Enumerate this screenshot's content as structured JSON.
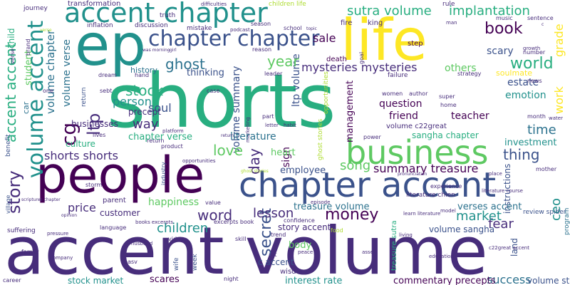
{
  "palette": {
    "background": "#ffffff",
    "dark_purple": "#440154",
    "indigo": "#472d7b",
    "blue": "#3b528b",
    "steel_blue": "#2c728e",
    "teal": "#21918c",
    "green_teal": "#28ae80",
    "green": "#5ec962",
    "lime": "#addc30",
    "yellow": "#fde725"
  },
  "words": [
    {
      "text": "shorts"
    },
    {
      "text": "accent volume"
    },
    {
      "text": "life"
    },
    {
      "text": "ep"
    },
    {
      "text": "people"
    },
    {
      "text": "accent chapter"
    },
    {
      "text": "chapter accent"
    },
    {
      "text": "business"
    },
    {
      "text": "chapter chapter"
    },
    {
      "text": "volume accent"
    },
    {
      "text": "accent accent"
    },
    {
      "text": "sutra volume"
    },
    {
      "text": "implantation"
    },
    {
      "text": "book"
    },
    {
      "text": "world"
    },
    {
      "text": "story"
    },
    {
      "text": "work"
    },
    {
      "text": "grade"
    },
    {
      "text": "ghost"
    },
    {
      "text": "year"
    },
    {
      "text": "mysteries mysteries"
    },
    {
      "text": "others"
    },
    {
      "text": "scary"
    },
    {
      "text": "estate"
    },
    {
      "text": "stock"
    },
    {
      "text": "soul"
    },
    {
      "text": "person"
    },
    {
      "text": "ltp"
    },
    {
      "text": "way"
    },
    {
      "text": "love"
    },
    {
      "text": "thing"
    },
    {
      "text": "time"
    },
    {
      "text": "emotion"
    },
    {
      "text": "investment"
    },
    {
      "text": "sign"
    },
    {
      "text": "day"
    },
    {
      "text": "summary treasure"
    },
    {
      "text": "song"
    },
    {
      "text": "money"
    },
    {
      "text": "fear"
    },
    {
      "text": "market"
    },
    {
      "text": "lesson"
    },
    {
      "text": "word"
    },
    {
      "text": "children"
    },
    {
      "text": "story accent"
    },
    {
      "text": "secret"
    },
    {
      "text": "success"
    },
    {
      "text": "stock market"
    },
    {
      "text": "interest rate"
    },
    {
      "text": "scares"
    },
    {
      "text": "price"
    },
    {
      "text": "happiness"
    },
    {
      "text": "shorts shorts"
    },
    {
      "text": "chapter verse"
    },
    {
      "text": "literature"
    },
    {
      "text": "sale"
    },
    {
      "text": "management"
    },
    {
      "text": "question"
    },
    {
      "text": "friend"
    },
    {
      "text": "teacher"
    },
    {
      "text": "ceo"
    },
    {
      "text": "cg"
    },
    {
      "text": "student"
    },
    {
      "text": "culture"
    },
    {
      "text": "customer"
    },
    {
      "text": "body"
    },
    {
      "text": "treasure volume"
    },
    {
      "text": "verses accent"
    },
    {
      "text": "volume sangha"
    },
    {
      "text": "heart"
    },
    {
      "text": "employee"
    },
    {
      "text": "ltp volume"
    },
    {
      "text": "volume summary"
    },
    {
      "text": "precept"
    },
    {
      "text": "businesses"
    },
    {
      "text": "volume chapter"
    },
    {
      "text": "volume verse"
    },
    {
      "text": "thinking"
    },
    {
      "text": "history"
    },
    {
      "text": "soulmate"
    },
    {
      "text": "review spider"
    },
    {
      "text": "commentary precepts"
    },
    {
      "text": "volume story"
    },
    {
      "text": "grade"
    },
    {
      "text": "child"
    },
    {
      "text": "transformation"
    },
    {
      "text": "journey"
    },
    {
      "text": "difficulties"
    },
    {
      "text": "children life"
    },
    {
      "text": "rule"
    },
    {
      "text": "truth"
    },
    {
      "text": "inflation"
    },
    {
      "text": "discussion"
    },
    {
      "text": "mistake"
    },
    {
      "text": "podcast"
    },
    {
      "text": "season"
    },
    {
      "text": "school"
    },
    {
      "text": "fire"
    },
    {
      "text": "king"
    },
    {
      "text": "step"
    },
    {
      "text": "death"
    },
    {
      "text": "reason"
    },
    {
      "text": "leader"
    },
    {
      "text": "failure"
    },
    {
      "text": "strategy"
    },
    {
      "text": "dream"
    },
    {
      "text": "hand"
    },
    {
      "text": "sebt"
    },
    {
      "text": "one"
    },
    {
      "text": "case"
    },
    {
      "text": "part"
    },
    {
      "text": "letter"
    },
    {
      "text": "habit"
    },
    {
      "text": "power"
    },
    {
      "text": "super"
    },
    {
      "text": "home"
    },
    {
      "text": "author"
    },
    {
      "text": "women"
    },
    {
      "text": "news"
    },
    {
      "text": "number"
    },
    {
      "text": "music"
    },
    {
      "text": "sentence"
    },
    {
      "text": "growth"
    },
    {
      "text": "month"
    },
    {
      "text": "water"
    },
    {
      "text": "platform"
    },
    {
      "text": "product"
    },
    {
      "text": "lives"
    },
    {
      "text": "industry"
    },
    {
      "text": "storm"
    },
    {
      "text": "parent"
    },
    {
      "text": "value"
    },
    {
      "text": "skill"
    },
    {
      "text": "video"
    },
    {
      "text": "language"
    },
    {
      "text": "suffering"
    },
    {
      "text": "family"
    },
    {
      "text": "company"
    },
    {
      "text": "husband"
    },
    {
      "text": "basv"
    },
    {
      "text": "house"
    },
    {
      "text": "okrs"
    },
    {
      "text": "problem"
    },
    {
      "text": "wife"
    },
    {
      "text": "week"
    },
    {
      "text": "night"
    },
    {
      "text": "art"
    },
    {
      "text": "c accent"
    },
    {
      "text": "trend"
    },
    {
      "text": "peace"
    },
    {
      "text": "wisdom"
    },
    {
      "text": "asset"
    },
    {
      "text": "c22great accent"
    },
    {
      "text": "education"
    },
    {
      "text": "career"
    },
    {
      "text": "confidence"
    },
    {
      "text": "episode"
    },
    {
      "text": "food"
    },
    {
      "text": "living"
    },
    {
      "text": "land"
    },
    {
      "text": "model"
    },
    {
      "text": "learn literature"
    },
    {
      "text": "literature course"
    },
    {
      "text": "mother"
    },
    {
      "text": "place"
    },
    {
      "text": "pronunciation"
    },
    {
      "text": "literature chien"
    },
    {
      "text": "experience"
    },
    {
      "text": "mind"
    },
    {
      "text": "sangha chapter"
    },
    {
      "text": "volume c22great"
    },
    {
      "text": "program"
    },
    {
      "text": "relationship"
    },
    {
      "text": "accent sutra"
    },
    {
      "text": "risk"
    },
    {
      "text": "guy"
    },
    {
      "text": "mysteries"
    },
    {
      "text": "instructions"
    },
    {
      "text": "return"
    },
    {
      "text": "car"
    },
    {
      "text": "benefit"
    },
    {
      "text": "treasure sutra"
    },
    {
      "text": "pressure"
    },
    {
      "text": "village"
    },
    {
      "text": "scriptures chapter"
    },
    {
      "text": "opinion"
    },
    {
      "text": "books excerpts"
    },
    {
      "text": "excerpts book"
    },
    {
      "text": "ghost stories"
    },
    {
      "text": "opportunities"
    },
    {
      "text": "marketing"
    },
    {
      "text": "goal"
    },
    {
      "text": "topic"
    },
    {
      "text": "brand"
    },
    {
      "text": "girl"
    },
    {
      "text": "was morning"
    },
    {
      "text": "verse"
    },
    {
      "text": "c"
    },
    {
      "text": "man"
    }
  ]
}
